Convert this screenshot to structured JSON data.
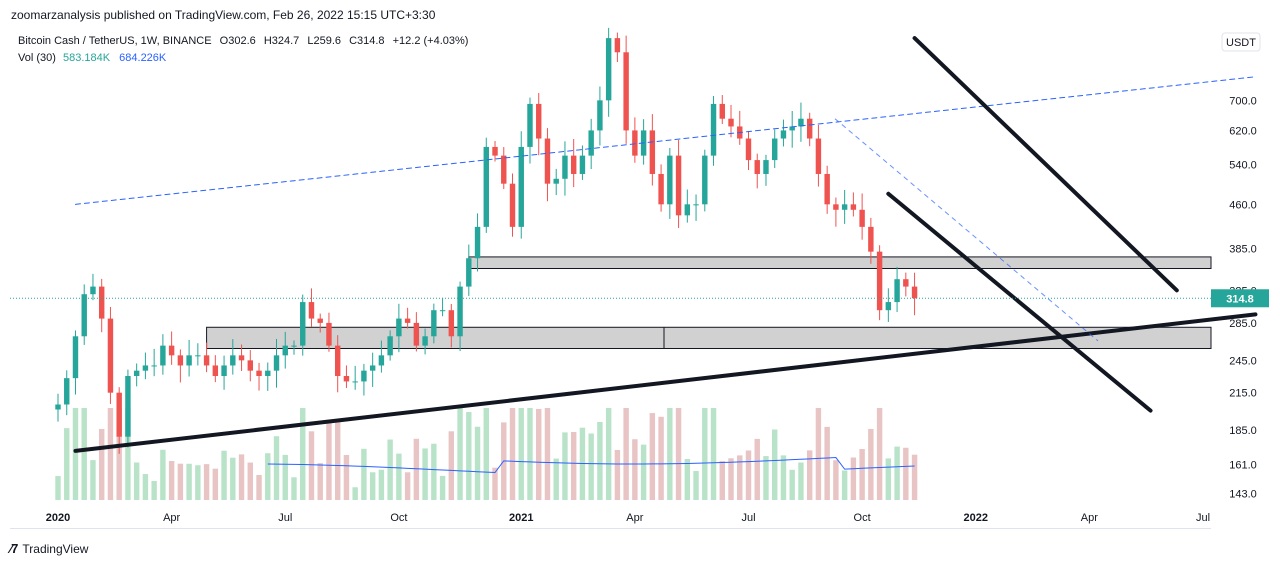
{
  "publisher": "zoomarzanalysis published on TradingView.com, Feb 26, 2022 15:15 UTC+3:30",
  "header": {
    "symbol": "Bitcoin Cash / TetherUS, 1W, BINANCE",
    "open": "O302.6",
    "high": "H324.7",
    "low": "L259.6",
    "close": "C314.8",
    "change": "+12.2 (+4.03%)",
    "volume_label": "Vol (30)",
    "volume_value": "583.184K",
    "volume_ma": "684.226K"
  },
  "currency": "USDT",
  "last_price_label": "314.8",
  "footer": {
    "brand": "TradingView"
  },
  "colors": {
    "up": "#26a69a",
    "down": "#ef5350",
    "up_vol": "#b9e3c9",
    "down_vol": "#e8c4c4",
    "ma": "#2962ff",
    "price_line": "#26a69a"
  },
  "chart_data": {
    "type": "candlestick",
    "title": "Bitcoin Cash / TetherUS, 1W, BINANCE",
    "y_scale": "log",
    "ylim": [
      125,
      930
    ],
    "y_ticks": [
      143.0,
      161.0,
      185.0,
      215.0,
      245.0,
      285.0,
      325.0,
      385.0,
      460.0,
      540.0,
      620.0,
      700.0
    ],
    "x_ticks": [
      "2020",
      "Apr",
      "Jul",
      "Oct",
      "2021",
      "Apr",
      "Jul",
      "Oct",
      "2022",
      "Apr",
      "Jul"
    ],
    "x_tick_weeks": [
      0,
      13,
      26,
      39,
      53,
      66,
      79,
      92,
      105,
      118,
      131
    ],
    "last_price": 314.8,
    "weekly_close": [
      205,
      228,
      270,
      320,
      330,
      290,
      215,
      180,
      230,
      235,
      240,
      240,
      260,
      250,
      240,
      250,
      250,
      240,
      230,
      240,
      250,
      245,
      235,
      230,
      235,
      250,
      260,
      260,
      310,
      290,
      285,
      260,
      230,
      225,
      225,
      235,
      240,
      250,
      270,
      290,
      285,
      260,
      270,
      300,
      300,
      270,
      330,
      370,
      420,
      580,
      560,
      500,
      420,
      580,
      690,
      600,
      500,
      510,
      560,
      520,
      560,
      620,
      700,
      900,
      850,
      620,
      560,
      620,
      520,
      460,
      560,
      440,
      460,
      460,
      560,
      690,
      650,
      630,
      600,
      550,
      520,
      550,
      600,
      620,
      630,
      650,
      600,
      520,
      460,
      450,
      460,
      450,
      420,
      380,
      300,
      310,
      340,
      330,
      314.8
    ],
    "trendlines": [
      {
        "style": "dashed",
        "from": {
          "week": 2,
          "price": 460
        },
        "to": {
          "week": 137,
          "price": 770
        }
      },
      {
        "style": "solid",
        "from": {
          "week": 2,
          "price": 170
        },
        "to": {
          "week": 137,
          "price": 295
        }
      },
      {
        "style": "solid",
        "from": {
          "week": 95,
          "price": 480
        },
        "to": {
          "week": 125,
          "price": 200
        }
      },
      {
        "style": "solid",
        "from": {
          "week": 98,
          "price": 900
        },
        "to": {
          "week": 128,
          "price": 325
        }
      }
    ],
    "zones": [
      {
        "from_week": 17,
        "to_week": 138,
        "low": 257,
        "high": 280
      },
      {
        "from_week": 47,
        "to_week": 138,
        "low": 355,
        "high": 372
      }
    ]
  }
}
